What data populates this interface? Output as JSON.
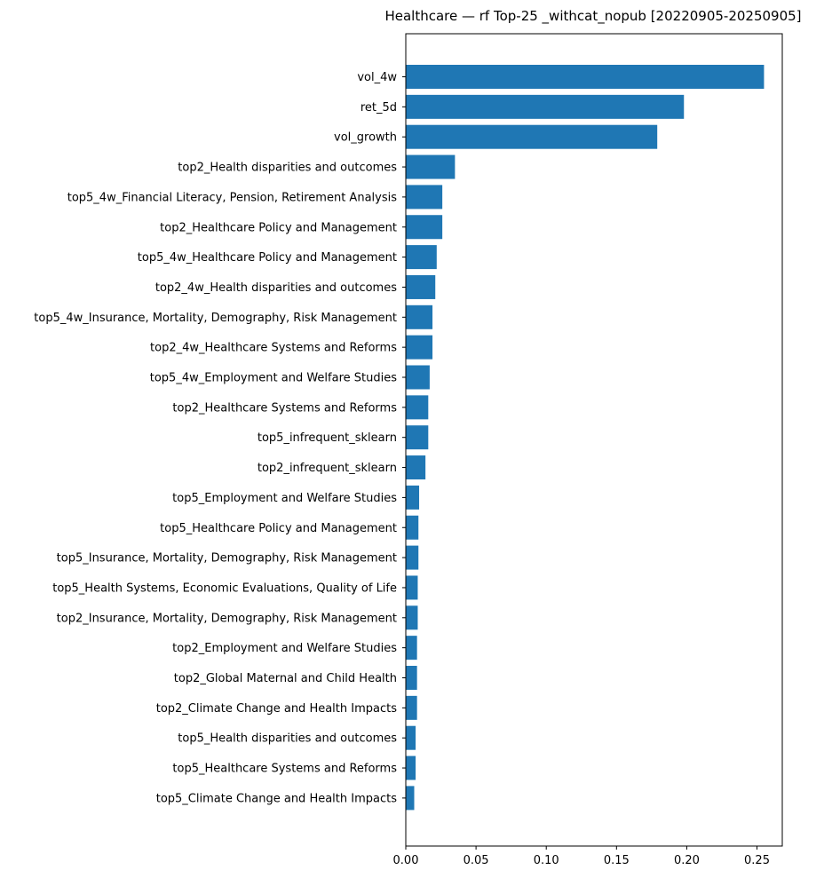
{
  "chart_data": {
    "type": "bar",
    "orientation": "horizontal",
    "title": "Healthcare — rf Top-25 _withcat_nopub [20220905-20250905]",
    "xlabel": "",
    "ylabel": "",
    "xlim": [
      0,
      0.268
    ],
    "xticks": [
      0.0,
      0.05,
      0.1,
      0.15,
      0.2,
      0.25
    ],
    "xtick_labels": [
      "0.00",
      "0.05",
      "0.10",
      "0.15",
      "0.20",
      "0.25"
    ],
    "grid": false,
    "bar_color": "#1f77b4",
    "categories": [
      "vol_4w",
      "ret_5d",
      "vol_growth",
      "top2_Health disparities and outcomes",
      "top5_4w_Financial Literacy, Pension, Retirement Analysis",
      "top2_Healthcare Policy and Management",
      "top5_4w_Healthcare Policy and Management",
      "top2_4w_Health disparities and outcomes",
      "top5_4w_Insurance, Mortality, Demography, Risk Management",
      "top2_4w_Healthcare Systems and Reforms",
      "top5_4w_Employment and Welfare Studies",
      "top2_Healthcare Systems and Reforms",
      "top5_infrequent_sklearn",
      "top2_infrequent_sklearn",
      "top5_Employment and Welfare Studies",
      "top5_Healthcare Policy and Management",
      "top5_Insurance, Mortality, Demography, Risk Management",
      "top5_Health Systems, Economic Evaluations, Quality of Life",
      "top2_Insurance, Mortality, Demography, Risk Management",
      "top2_Employment and Welfare Studies",
      "top2_Global Maternal and Child Health",
      "top2_Climate Change and Health Impacts",
      "top5_Health disparities and outcomes",
      "top5_Healthcare Systems and Reforms",
      "top5_Climate Change and Health Impacts"
    ],
    "values": [
      0.255,
      0.198,
      0.179,
      0.035,
      0.026,
      0.026,
      0.022,
      0.021,
      0.019,
      0.019,
      0.017,
      0.016,
      0.016,
      0.014,
      0.0095,
      0.009,
      0.009,
      0.0085,
      0.0085,
      0.008,
      0.008,
      0.008,
      0.007,
      0.007,
      0.006
    ]
  }
}
